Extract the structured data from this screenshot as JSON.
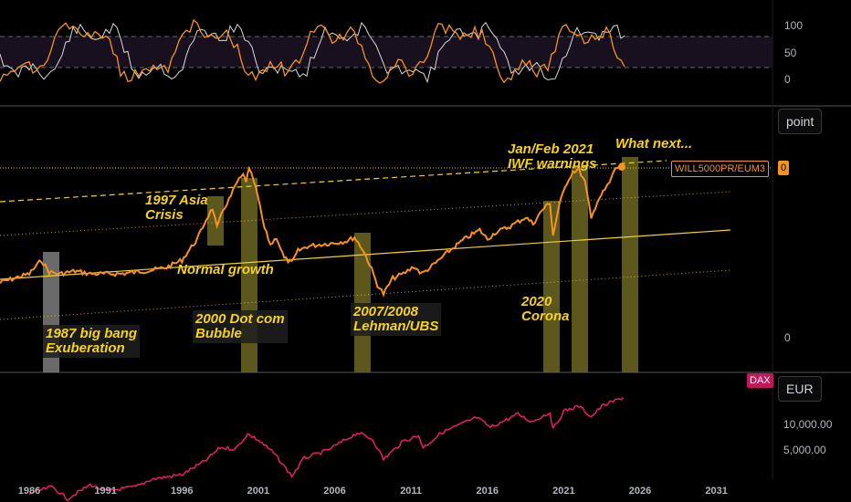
{
  "chart_data": {
    "type": "line",
    "x_ticks": [
      "1986",
      "1991",
      "1996",
      "2001",
      "2006",
      "2011",
      "2016",
      "2021",
      "2026",
      "2031"
    ],
    "oscillator": {
      "scale_ticks": [
        "100",
        "50",
        "0"
      ],
      "series": [
        {
          "name": "",
          "color": "#d9d9d9"
        },
        {
          "name": "",
          "color": "#f7931a"
        }
      ]
    },
    "main": {
      "series_label": "WILL5000PR/EUM3",
      "value_tag": "0",
      "scale_tick": "0",
      "unit": "point",
      "color": "#f7931a",
      "points": [
        [
          1984.0,
          310
        ],
        [
          1985.0,
          305
        ],
        [
          1986.0,
          300
        ],
        [
          1986.8,
          285
        ],
        [
          1987.3,
          298
        ],
        [
          1988.0,
          300
        ],
        [
          1989.0,
          297
        ],
        [
          1990.0,
          300
        ],
        [
          1991.0,
          300
        ],
        [
          1992.0,
          300
        ],
        [
          1993.0,
          298
        ],
        [
          1994.0,
          296
        ],
        [
          1995.0,
          293
        ],
        [
          1996.0,
          285
        ],
        [
          1997.0,
          262
        ],
        [
          1997.6,
          240
        ],
        [
          1998.0,
          228
        ],
        [
          1998.3,
          250
        ],
        [
          1998.7,
          230
        ],
        [
          1999.2,
          215
        ],
        [
          1999.6,
          200
        ],
        [
          2000.0,
          192
        ],
        [
          2000.2,
          198
        ],
        [
          2000.4,
          186
        ],
        [
          2000.7,
          198
        ],
        [
          2001.0,
          218
        ],
        [
          2001.4,
          250
        ],
        [
          2001.8,
          268
        ],
        [
          2002.2,
          260
        ],
        [
          2002.7,
          283
        ],
        [
          2003.2,
          288
        ],
        [
          2003.6,
          275
        ],
        [
          2004.2,
          270
        ],
        [
          2005.0,
          268
        ],
        [
          2006.0,
          266
        ],
        [
          2006.8,
          264
        ],
        [
          2007.3,
          260
        ],
        [
          2007.8,
          272
        ],
        [
          2008.3,
          290
        ],
        [
          2008.8,
          312
        ],
        [
          2009.2,
          322
        ],
        [
          2009.8,
          305
        ],
        [
          2010.5,
          300
        ],
        [
          2011.2,
          292
        ],
        [
          2011.7,
          300
        ],
        [
          2012.5,
          290
        ],
        [
          2013.5,
          275
        ],
        [
          2014.5,
          262
        ],
        [
          2015.5,
          252
        ],
        [
          2016.0,
          262
        ],
        [
          2016.5,
          255
        ],
        [
          2017.5,
          248
        ],
        [
          2018.5,
          238
        ],
        [
          2019.0,
          245
        ],
        [
          2019.6,
          230
        ],
        [
          2020.1,
          222
        ],
        [
          2020.3,
          258
        ],
        [
          2020.7,
          225
        ],
        [
          2021.2,
          200
        ],
        [
          2021.6,
          188
        ],
        [
          2022.0,
          186
        ],
        [
          2022.4,
          200
        ],
        [
          2022.8,
          240
        ],
        [
          2023.2,
          220
        ],
        [
          2023.7,
          208
        ],
        [
          2024.0,
          200
        ],
        [
          2024.4,
          184
        ],
        [
          2024.8,
          183
        ]
      ]
    },
    "dax": {
      "series_label": "DAX",
      "unit": "EUR",
      "color": "#e91e63",
      "scale_ticks": [
        "10,000.00",
        "5,000.00"
      ],
      "points": [
        [
          1986.0,
          1500
        ],
        [
          1987.5,
          1800
        ],
        [
          1988.5,
          1300
        ],
        [
          1990.0,
          1900
        ],
        [
          1991.0,
          1600
        ],
        [
          1993.0,
          1800
        ],
        [
          1994.0,
          2200
        ],
        [
          1996.0,
          2500
        ],
        [
          1997.5,
          3600
        ],
        [
          1998.5,
          5200
        ],
        [
          1999.5,
          5000
        ],
        [
          2000.3,
          7500
        ],
        [
          2001.0,
          6400
        ],
        [
          2002.0,
          4500
        ],
        [
          2003.2,
          2400
        ],
        [
          2004.0,
          3900
        ],
        [
          2005.5,
          4800
        ],
        [
          2007.5,
          7800
        ],
        [
          2008.5,
          6500
        ],
        [
          2009.2,
          3800
        ],
        [
          2010.5,
          6200
        ],
        [
          2011.5,
          7200
        ],
        [
          2011.8,
          5200
        ],
        [
          2013.0,
          7800
        ],
        [
          2015.3,
          11800
        ],
        [
          2016.2,
          9000
        ],
        [
          2018.0,
          12900
        ],
        [
          2018.9,
          10500
        ],
        [
          2020.1,
          13500
        ],
        [
          2020.3,
          8500
        ],
        [
          2021.0,
          14000
        ],
        [
          2022.0,
          16000
        ],
        [
          2022.8,
          12000
        ],
        [
          2023.5,
          16000
        ],
        [
          2024.5,
          19000
        ],
        [
          2024.9,
          20300
        ]
      ]
    }
  },
  "annotations": {
    "bigbang": "1987 big bang\nExuberation",
    "asia": "1997 Asia\nCrisis",
    "normal": "Normal growth",
    "dotcom": "2000 Dot com\nBubble",
    "lehman": "2007/2008\nLehman/UBS",
    "corona": "2020\nCorona",
    "iwf": "Jan/Feb 2021\nIWF warnings",
    "whatnext": "What next..."
  }
}
